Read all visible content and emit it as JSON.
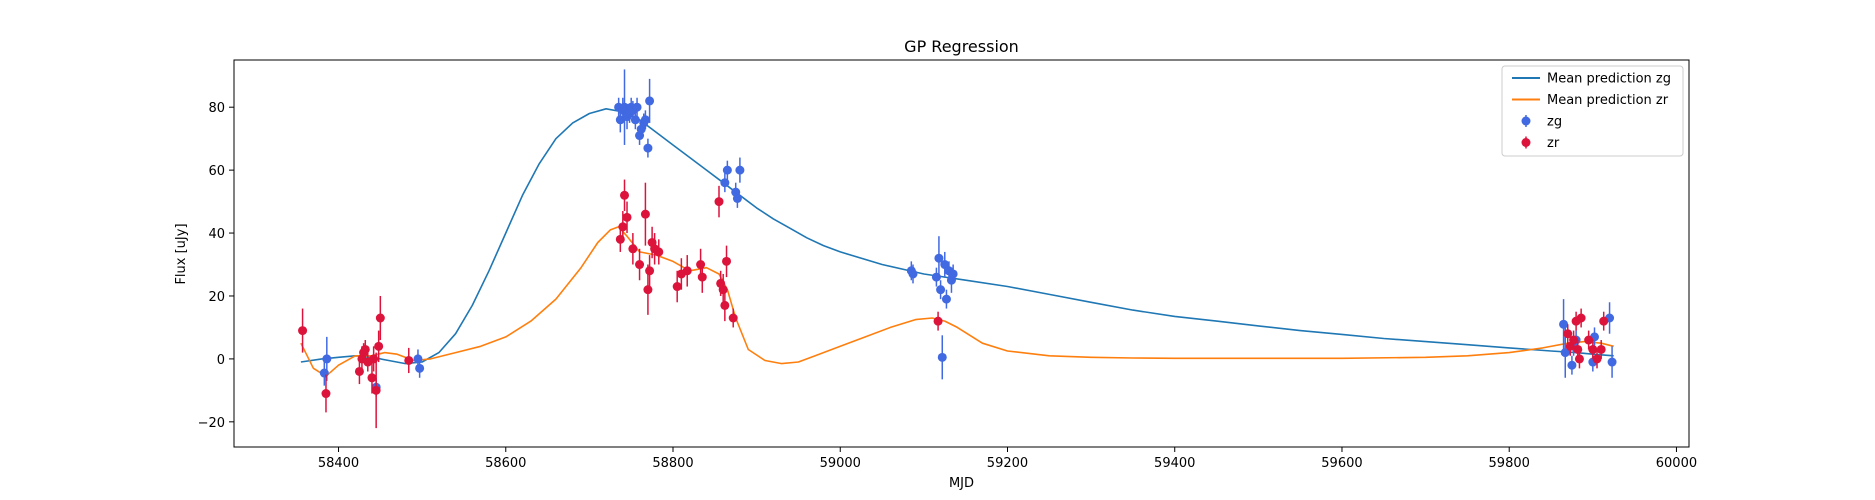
{
  "chart_data": {
    "type": "scatter",
    "title": "GP Regression",
    "xlabel": "MJD",
    "ylabel": "Flux [uJy]",
    "xlim": [
      58275,
      60015
    ],
    "ylim": [
      -28,
      95
    ],
    "xticks": [
      58400,
      58600,
      58800,
      59000,
      59200,
      59400,
      59600,
      59800,
      60000
    ],
    "yticks": [
      -20,
      0,
      20,
      40,
      60,
      80
    ],
    "grid": false,
    "legend_position": "top-right",
    "legend": [
      "Mean prediction zg",
      "Mean prediction zr",
      "zg",
      "zr"
    ],
    "series": [
      {
        "name": "Mean prediction zg",
        "kind": "line",
        "color": "#1f77b4",
        "x": [
          58355,
          58380,
          58400,
          58420,
          58440,
          58460,
          58480,
          58500,
          58520,
          58540,
          58560,
          58580,
          58600,
          58620,
          58640,
          58660,
          58680,
          58700,
          58720,
          58740,
          58760,
          58780,
          58800,
          58820,
          58840,
          58860,
          58880,
          58900,
          58920,
          58940,
          58960,
          58980,
          59000,
          59050,
          59100,
          59150,
          59200,
          59250,
          59300,
          59350,
          59400,
          59450,
          59500,
          59550,
          59600,
          59650,
          59700,
          59750,
          59800,
          59850,
          59880,
          59900,
          59925
        ],
        "y": [
          -1,
          0,
          0.5,
          1,
          0.5,
          -0.5,
          -1.5,
          -1,
          2,
          8,
          17,
          28,
          40,
          52,
          62,
          70,
          75,
          78,
          79.5,
          78.5,
          76,
          72,
          68,
          64,
          60,
          56,
          52,
          48,
          44.5,
          41.5,
          38.5,
          36,
          34,
          30,
          27,
          25,
          23,
          20.5,
          18,
          15.5,
          13.5,
          12,
          10.5,
          9,
          7.8,
          6.5,
          5.5,
          4.5,
          3.5,
          2.5,
          2,
          1.5,
          1
        ]
      },
      {
        "name": "Mean prediction zr",
        "kind": "line",
        "color": "#ff7f0e",
        "x": [
          58355,
          58370,
          58385,
          58400,
          58420,
          58440,
          58455,
          58470,
          58490,
          58510,
          58540,
          58570,
          58600,
          58630,
          58660,
          58690,
          58710,
          58725,
          58735,
          58745,
          58760,
          58780,
          58800,
          58820,
          58840,
          58855,
          58865,
          58875,
          58890,
          58910,
          58930,
          58950,
          58970,
          59000,
          59030,
          59060,
          59090,
          59110,
          59125,
          59140,
          59170,
          59200,
          59250,
          59300,
          59350,
          59400,
          59500,
          59600,
          59700,
          59750,
          59800,
          59840,
          59870,
          59890,
          59910,
          59925
        ],
        "y": [
          5,
          -3,
          -5.5,
          -2,
          1,
          1,
          2,
          1.5,
          -0.5,
          0,
          2,
          4,
          7,
          12,
          19,
          29,
          37,
          41,
          42,
          39,
          34,
          33,
          31,
          28,
          29,
          27,
          22,
          13,
          3,
          -0.5,
          -1.5,
          -1,
          1,
          4,
          7,
          10,
          12.5,
          13,
          12,
          10,
          5,
          2.5,
          1,
          0.5,
          0.3,
          0.2,
          0.2,
          0.2,
          0.5,
          1,
          2,
          3.5,
          5,
          5.5,
          5,
          4
        ]
      },
      {
        "name": "zg",
        "kind": "errorbar",
        "color": "#4169e1",
        "x": [
          58383,
          58386,
          58445,
          58495,
          58497,
          58735,
          58737,
          58740,
          58742,
          58745,
          58748,
          58750,
          58752,
          58755,
          58757,
          58760,
          58762,
          58765,
          58767,
          58770,
          58772,
          58862,
          58865,
          58875,
          58877,
          58880,
          59085,
          59087,
          59115,
          59118,
          59120,
          59122,
          59125,
          59127,
          59130,
          59133,
          59135,
          59865,
          59867,
          59875,
          59877,
          59880,
          59900,
          59902,
          59920,
          59923
        ],
        "y": [
          -4.5,
          0,
          -9,
          0,
          -3,
          80,
          76,
          79,
          80,
          77,
          78,
          80,
          79,
          76,
          80,
          71,
          73,
          75,
          76,
          67,
          82,
          56,
          60,
          53,
          51,
          60,
          28,
          27,
          26,
          32,
          22,
          0.5,
          30,
          19,
          28,
          25,
          27,
          11,
          2,
          -2,
          4,
          6,
          -1,
          7,
          13,
          -1
        ],
        "yerr": [
          4,
          7,
          3,
          3,
          3,
          3,
          4,
          4,
          12,
          4,
          3,
          3,
          3,
          3,
          3,
          3,
          3,
          3,
          3,
          3,
          7,
          3,
          3,
          3,
          3,
          4,
          3,
          3,
          3,
          7,
          3,
          7,
          4,
          3,
          3,
          4,
          3,
          8,
          8,
          3,
          3,
          3,
          3,
          3,
          5,
          5
        ]
      },
      {
        "name": "zr",
        "kind": "errorbar",
        "color": "#dc143c",
        "x": [
          58357,
          58385,
          58425,
          58428,
          58430,
          58432,
          58435,
          58440,
          58442,
          58445,
          58448,
          58450,
          58484,
          58737,
          58740,
          58742,
          58745,
          58752,
          58760,
          58767,
          58770,
          58772,
          58775,
          58778,
          58783,
          58805,
          58810,
          58817,
          58833,
          58835,
          58855,
          58857,
          58860,
          58862,
          58864,
          58872,
          59117,
          59870,
          59873,
          59877,
          59880,
          59882,
          59884,
          59886,
          59895,
          59900,
          59905,
          59910,
          59913
        ],
        "y": [
          9,
          -11,
          -4,
          0,
          2,
          3,
          -1,
          -6,
          0,
          -10,
          4,
          13,
          -0.5,
          38,
          42,
          52,
          45,
          35,
          30,
          46,
          22,
          28,
          37,
          35,
          34,
          23,
          27,
          28,
          30,
          26,
          50,
          24,
          22,
          17,
          31,
          13,
          12,
          8,
          4,
          6,
          12,
          3,
          0,
          13,
          6,
          3,
          0,
          3,
          12
        ],
        "yerr": [
          7,
          6,
          4,
          4,
          3,
          3,
          3,
          5,
          4,
          12,
          5,
          7,
          4,
          4,
          5,
          5,
          5,
          5,
          5,
          10,
          8,
          5,
          5,
          5,
          4,
          5,
          5,
          5,
          5,
          5,
          5,
          4,
          5,
          5,
          5,
          3,
          3,
          3,
          3,
          3,
          3,
          3,
          3,
          3,
          3,
          3,
          3,
          3,
          3
        ]
      }
    ]
  }
}
